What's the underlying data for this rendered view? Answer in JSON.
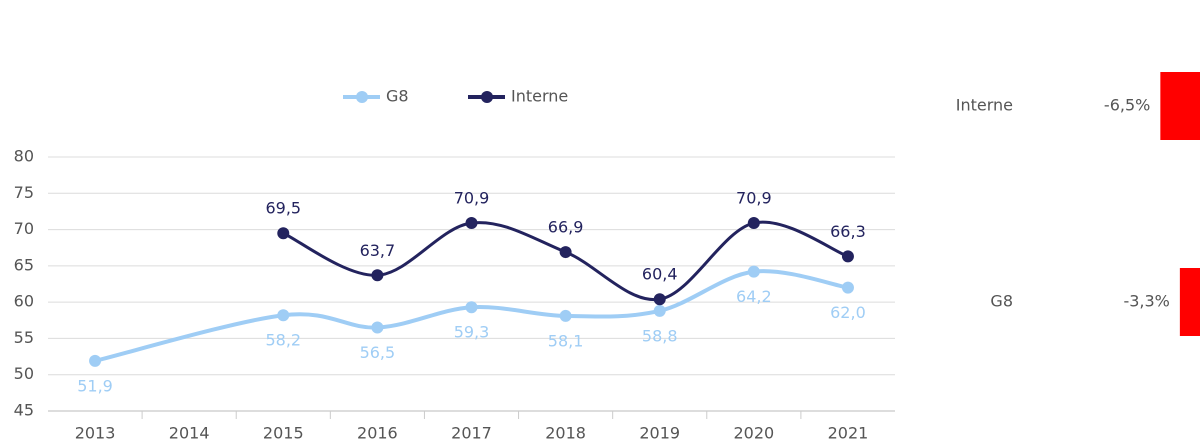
{
  "chart_data": {
    "type": "line",
    "xlim": [
      2012.5,
      2021.5
    ],
    "xticks": [
      2013,
      2014,
      2015,
      2016,
      2017,
      2018,
      2019,
      2020,
      2021
    ],
    "ylim": [
      45,
      80
    ],
    "yticks": [
      45,
      50,
      55,
      60,
      65,
      70,
      75,
      80
    ],
    "grid": true,
    "legend": "top",
    "series": [
      {
        "name": "G8",
        "color": "#9fcdf5",
        "label_position": "below",
        "x": [
          2013,
          2015,
          2016,
          2017,
          2018,
          2019,
          2020,
          2021
        ],
        "values": [
          51.9,
          58.2,
          56.5,
          59.3,
          58.1,
          58.8,
          64.2,
          62.0
        ],
        "value_labels": [
          "51,9",
          "58,2",
          "56,5",
          "59,3",
          "58,1",
          "58,8",
          "64,2",
          "62,0"
        ]
      },
      {
        "name": "Interne",
        "color": "#23235e",
        "label_position": "above",
        "x": [
          2015,
          2016,
          2017,
          2018,
          2019,
          2020,
          2021
        ],
        "values": [
          69.5,
          63.7,
          70.9,
          66.9,
          60.4,
          70.9,
          66.3
        ],
        "value_labels": [
          "69,5",
          "63,7",
          "70,9",
          "66,9",
          "60,4",
          "70,9",
          "66,3"
        ]
      }
    ],
    "side_panel": [
      {
        "name": "Interne",
        "value": -6.5,
        "value_label": "-6,5%",
        "color": "#ff0000"
      },
      {
        "name": "G8",
        "value": -3.3,
        "value_label": "-3,3%",
        "color": "#ff0000"
      }
    ]
  }
}
